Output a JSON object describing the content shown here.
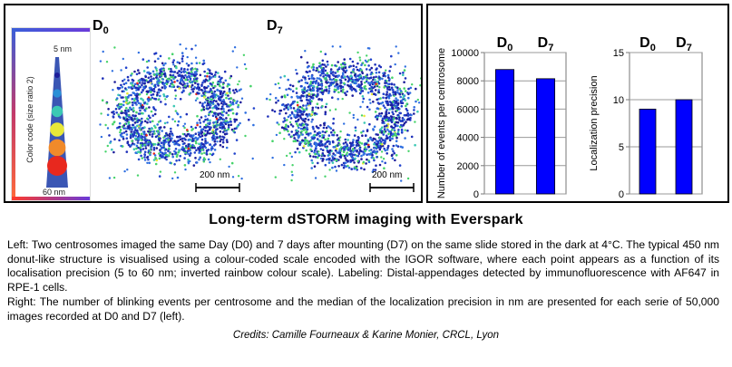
{
  "left_panel": {
    "legend": {
      "title": "Color code (size ratio 2)",
      "top_label": "5 nm",
      "bottom_label": "60 nm",
      "dots": [
        "#1d1d9a",
        "#2a8fd6",
        "#3cc8b4",
        "#e8e838",
        "#f08a2a",
        "#e8281e"
      ]
    },
    "images": [
      {
        "label_main": "D",
        "label_sub": "0",
        "scale_label": "200 nm"
      },
      {
        "label_main": "D",
        "label_sub": "7",
        "scale_label": "200 nm"
      }
    ]
  },
  "chart_data": [
    {
      "type": "bar",
      "categories": [
        "D0",
        "D7"
      ],
      "category_labels": [
        {
          "main": "D",
          "sub": "0"
        },
        {
          "main": "D",
          "sub": "7"
        }
      ],
      "values": [
        8800,
        8150
      ],
      "ylabel": "Number of events per centrosome",
      "ylim": [
        0,
        10000
      ],
      "yticks": [
        0,
        2000,
        4000,
        6000,
        8000,
        10000
      ],
      "grid": true,
      "bar_color": "#0000ff"
    },
    {
      "type": "bar",
      "categories": [
        "D0",
        "D7"
      ],
      "category_labels": [
        {
          "main": "D",
          "sub": "0"
        },
        {
          "main": "D",
          "sub": "7"
        }
      ],
      "values": [
        9,
        10
      ],
      "ylabel": "Localization precision",
      "ylim": [
        0,
        15
      ],
      "yticks": [
        0,
        5,
        10,
        15
      ],
      "grid": true,
      "bar_color": "#0000ff"
    }
  ],
  "caption": {
    "title": "Long-term dSTORM imaging with Everspark",
    "paragraph_left": "Left: Two centrosomes imaged the same Day (D0) and 7 days after mounting (D7) on the same slide stored in the dark at 4°C. The typical 450 nm donut-like structure is visualised using a colour-coded scale encoded with the IGOR software, where each point appears as a function of its localisation precision (5 to 60 nm; inverted rainbow colour scale). Labeling: Distal-appendages detected by immunofluorescence with AF647 in RPE-1 cells.",
    "paragraph_right": "Right: The number of blinking events per centrosome and the median of the localization precision in nm are presented for each serie of 50,000 images recorded at D0 and D7 (left).",
    "credits": "Credits: Camille Fourneaux & Karine Monier, CRCL, Lyon"
  }
}
